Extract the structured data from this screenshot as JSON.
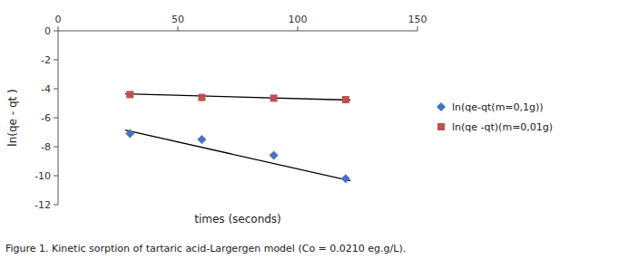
{
  "chart_data": {
    "type": "scatter",
    "xlabel": "times (seconds)",
    "ylabel": "ln(qe - qt )",
    "caption": "Figure 1. Kinetic sorption of tartaric acid-Largergen model (Co = 0.0210 eg.g/L).",
    "xlim": [
      0,
      150
    ],
    "ylim": [
      -12,
      0
    ],
    "xticks": [
      0,
      50,
      100,
      150
    ],
    "yticks": [
      0,
      -2,
      -4,
      -6,
      -8,
      -10,
      -12
    ],
    "grid": false,
    "legend": "right",
    "series": [
      {
        "type": "line",
        "color": "black",
        "x": [
          28,
          122
        ],
        "values": [
          -6.85,
          -10.35
        ]
      },
      {
        "type": "line",
        "color": "black",
        "x": [
          28,
          122
        ],
        "values": [
          -4.35,
          -4.78
        ]
      },
      {
        "type": "scatter",
        "name": "ln(qe-qt(m=0,1g))",
        "color": "#4472C4",
        "marker": "diamond",
        "x": [
          30,
          60,
          90,
          120
        ],
        "values": [
          -7.1,
          -7.5,
          -8.6,
          -10.2
        ]
      },
      {
        "type": "scatter",
        "name": "ln(qe -qt)(m=0,01g)",
        "color": "#C0504D",
        "marker": "square",
        "x": [
          30,
          60,
          90,
          120
        ],
        "values": [
          -4.4,
          -4.6,
          -4.65,
          -4.75
        ]
      }
    ]
  }
}
